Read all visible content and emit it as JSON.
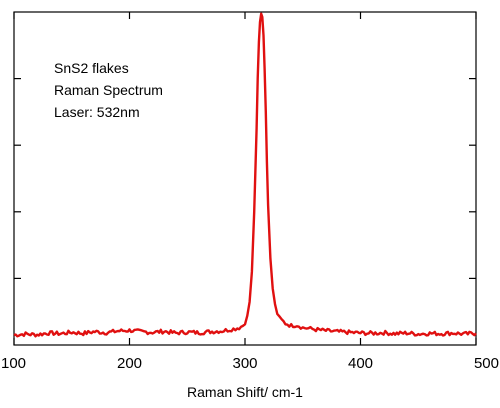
{
  "chart_data": {
    "type": "line",
    "title": "",
    "xlabel": "Raman Shift/ cm-1",
    "ylabel": "",
    "xlim": [
      100,
      500
    ],
    "ylim": [
      0,
      1
    ],
    "x_ticks": [
      100,
      200,
      300,
      400,
      500
    ],
    "x_tick_labels": [
      "100",
      "200",
      "300",
      "400",
      "500"
    ],
    "y_ticks": [
      0.2,
      0.4,
      0.6,
      0.8
    ],
    "y_tick_labels": [],
    "grid": false,
    "annotations": [
      "SnS2 flakes",
      "Raman Spectrum",
      "Laser: 532nm"
    ],
    "colors": {
      "series": "#e01010",
      "axes": "#000000"
    },
    "series": [
      {
        "name": "",
        "x": [
          100,
          110,
          120,
          130,
          140,
          150,
          160,
          170,
          180,
          190,
          200,
          210,
          220,
          230,
          240,
          250,
          260,
          270,
          280,
          285,
          290,
          295,
          298,
          300,
          302,
          304,
          306,
          308,
          310,
          311,
          312,
          313,
          314,
          315,
          316,
          317,
          318,
          319,
          320,
          322,
          324,
          326,
          328,
          330,
          335,
          340,
          345,
          350,
          355,
          360,
          370,
          380,
          390,
          400,
          410,
          420,
          430,
          440,
          450,
          460,
          470,
          480,
          490,
          500
        ],
        "y": [
          0.03,
          0.033,
          0.031,
          0.036,
          0.034,
          0.038,
          0.035,
          0.04,
          0.037,
          0.042,
          0.044,
          0.04,
          0.038,
          0.041,
          0.036,
          0.039,
          0.037,
          0.04,
          0.042,
          0.045,
          0.048,
          0.052,
          0.058,
          0.068,
          0.085,
          0.13,
          0.22,
          0.4,
          0.65,
          0.8,
          0.91,
          0.97,
          0.995,
          0.985,
          0.93,
          0.83,
          0.7,
          0.55,
          0.42,
          0.26,
          0.17,
          0.12,
          0.095,
          0.08,
          0.065,
          0.058,
          0.06,
          0.052,
          0.05,
          0.047,
          0.043,
          0.04,
          0.038,
          0.036,
          0.035,
          0.037,
          0.034,
          0.036,
          0.033,
          0.035,
          0.034,
          0.036,
          0.033,
          0.035
        ]
      }
    ]
  }
}
